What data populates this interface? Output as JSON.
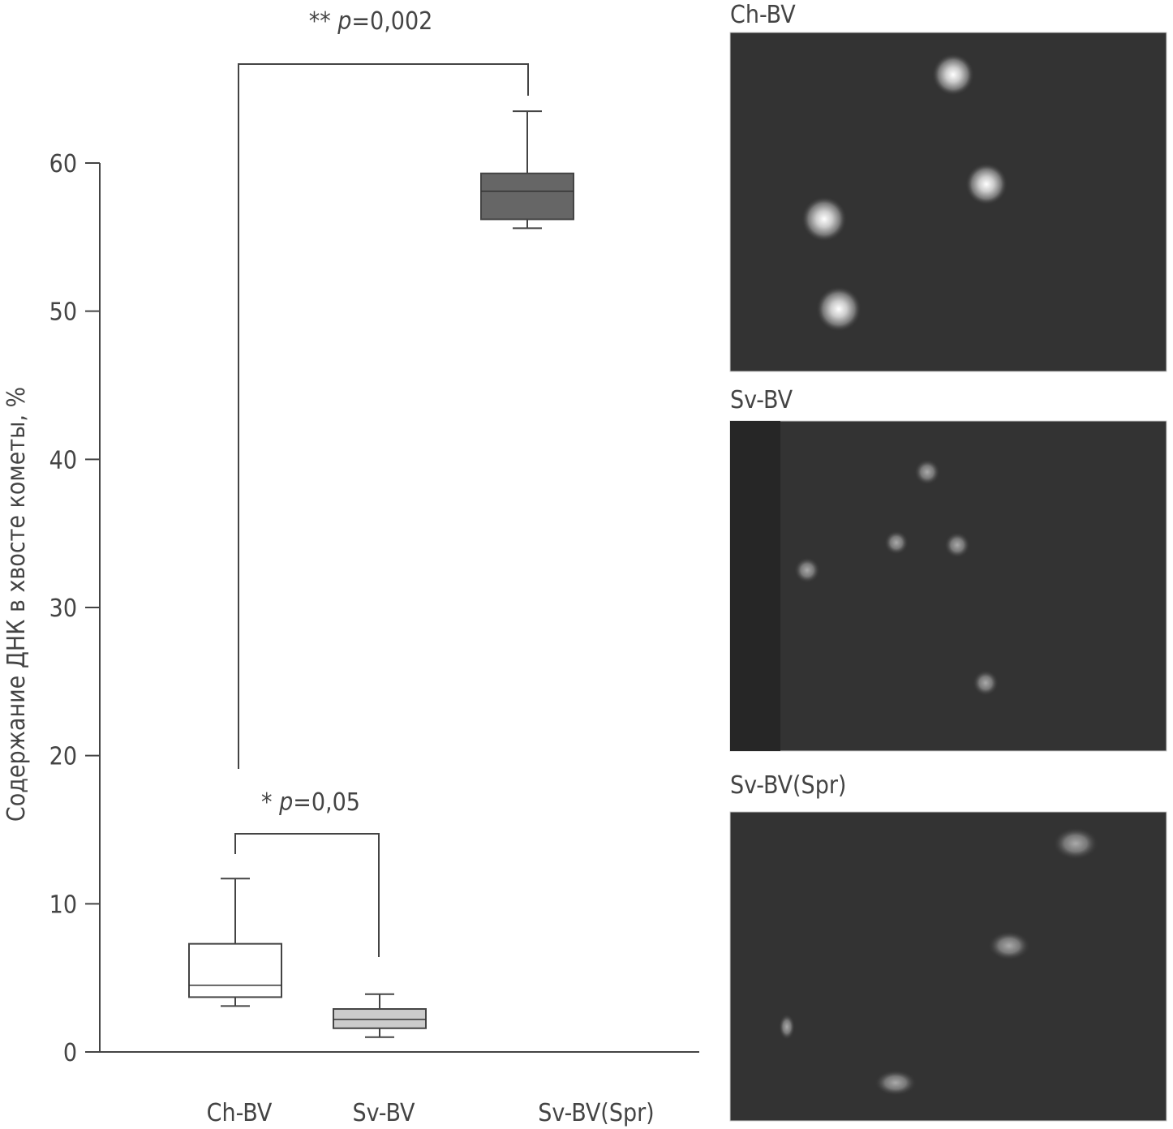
{
  "chart_data": {
    "type": "box",
    "y_label": "Содержание ДНК в хвосте кометы, %",
    "categories": [
      "Ch-BV",
      "Sv-BV",
      "Sv-BV(Spr)"
    ],
    "boxes": [
      {
        "min": 3.1,
        "q1": 3.7,
        "median": 4.5,
        "q3": 7.3,
        "max": 11.7,
        "color": "#ffffff"
      },
      {
        "min": 1.0,
        "q1": 1.6,
        "median": 2.2,
        "q3": 2.9,
        "max": 3.9,
        "color": "#cccccc"
      },
      {
        "min": 55.6,
        "q1": 56.2,
        "median": 58.1,
        "q3": 59.3,
        "max": 63.5,
        "color": "#666666"
      }
    ],
    "ylim": [
      0,
      60
    ],
    "yticks": [
      0,
      10,
      20,
      30,
      40,
      50,
      60
    ],
    "annotations": [
      {
        "prefix": "** ",
        "italic": "p",
        "suffix": "=0,002"
      },
      {
        "prefix": "* ",
        "italic": "p",
        "suffix": "=0,05"
      }
    ],
    "image_labels": [
      "Ch-BV",
      "Sv-BV",
      "Sv-BV(Spr)"
    ]
  }
}
